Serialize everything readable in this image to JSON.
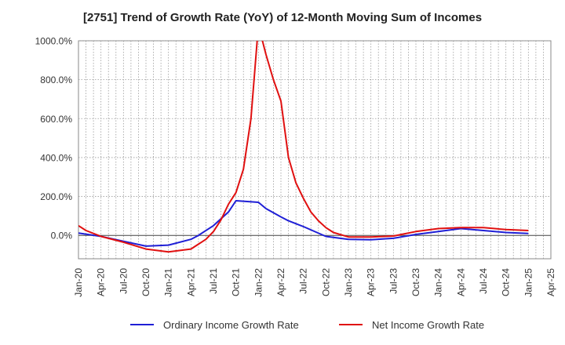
{
  "chart_data": {
    "type": "line",
    "title": "[2751]  Trend of Growth Rate (YoY) of 12-Month Moving Sum of Incomes",
    "xlabel": "",
    "ylabel": "",
    "ylim": [
      -120,
      1000
    ],
    "yticks": [
      0,
      200,
      400,
      600,
      800,
      1000
    ],
    "ytick_labels": [
      "0.0%",
      "200.0%",
      "400.0%",
      "600.0%",
      "800.0%",
      "1000.0%"
    ],
    "x_start": "2020-01",
    "x_end": "2025-04",
    "xtick_labels": [
      "Jan-20",
      "Apr-20",
      "Jul-20",
      "Oct-20",
      "Jan-21",
      "Apr-21",
      "Jul-21",
      "Oct-21",
      "Jan-22",
      "Apr-22",
      "Jul-22",
      "Oct-22",
      "Jan-23",
      "Apr-23",
      "Jul-23",
      "Oct-23",
      "Jan-24",
      "Apr-24",
      "Jul-24",
      "Oct-24",
      "Jan-25",
      "Apr-25"
    ],
    "grid": true,
    "legend_position": "bottom",
    "series": [
      {
        "name": "Ordinary Income Growth Rate",
        "color": "#1f1fd6",
        "points": [
          [
            "2020-01",
            12
          ],
          [
            "2020-04",
            -5
          ],
          [
            "2020-07",
            -30
          ],
          [
            "2020-10",
            -55
          ],
          [
            "2021-01",
            -50
          ],
          [
            "2021-04",
            -20
          ],
          [
            "2021-05",
            0
          ],
          [
            "2021-07",
            50
          ],
          [
            "2021-09",
            120
          ],
          [
            "2021-10",
            178
          ],
          [
            "2022-01",
            170
          ],
          [
            "2022-02",
            138
          ],
          [
            "2022-04",
            95
          ],
          [
            "2022-05",
            75
          ],
          [
            "2022-07",
            45
          ],
          [
            "2022-10",
            -5
          ],
          [
            "2023-01",
            -20
          ],
          [
            "2023-04",
            -22
          ],
          [
            "2023-07",
            -15
          ],
          [
            "2023-10",
            5
          ],
          [
            "2024-01",
            20
          ],
          [
            "2024-04",
            35
          ],
          [
            "2024-07",
            25
          ],
          [
            "2024-10",
            15
          ],
          [
            "2025-01",
            10
          ]
        ]
      },
      {
        "name": "Net Income Growth Rate",
        "color": "#e01010",
        "points": [
          [
            "2020-01",
            50
          ],
          [
            "2020-02",
            25
          ],
          [
            "2020-04",
            -5
          ],
          [
            "2020-07",
            -35
          ],
          [
            "2020-10",
            -70
          ],
          [
            "2021-01",
            -85
          ],
          [
            "2021-04",
            -70
          ],
          [
            "2021-06",
            -20
          ],
          [
            "2021-07",
            20
          ],
          [
            "2021-08",
            80
          ],
          [
            "2021-09",
            160
          ],
          [
            "2021-10",
            220
          ],
          [
            "2021-11",
            340
          ],
          [
            "2021-12",
            600
          ],
          [
            "2022-01",
            1080
          ],
          [
            "2022-02",
            930
          ],
          [
            "2022-03",
            800
          ],
          [
            "2022-04",
            690
          ],
          [
            "2022-05",
            400
          ],
          [
            "2022-06",
            270
          ],
          [
            "2022-07",
            190
          ],
          [
            "2022-08",
            120
          ],
          [
            "2022-09",
            75
          ],
          [
            "2022-10",
            40
          ],
          [
            "2022-11",
            15
          ],
          [
            "2023-01",
            -8
          ],
          [
            "2023-04",
            -8
          ],
          [
            "2023-07",
            -3
          ],
          [
            "2023-10",
            20
          ],
          [
            "2024-01",
            35
          ],
          [
            "2024-04",
            40
          ],
          [
            "2024-07",
            40
          ],
          [
            "2024-10",
            30
          ],
          [
            "2025-01",
            25
          ]
        ]
      }
    ]
  }
}
